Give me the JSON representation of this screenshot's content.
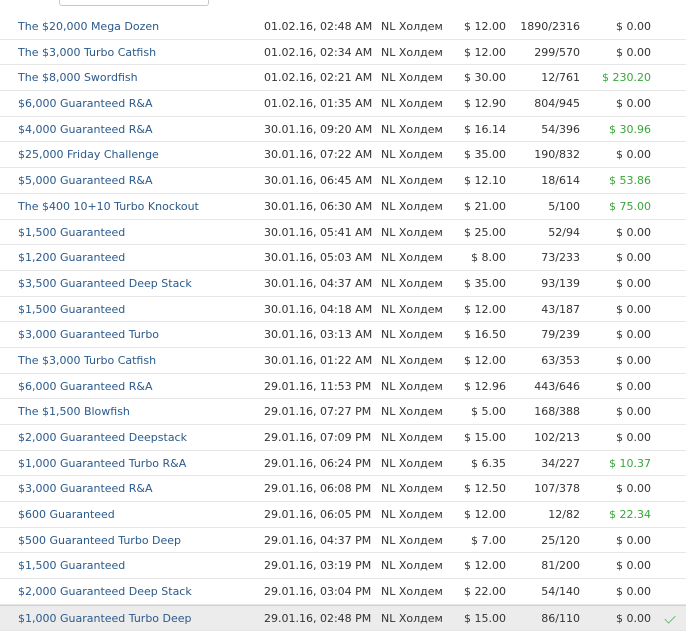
{
  "rows": [
    {
      "name": "The $20,000 Mega Dozen",
      "date": "01.02.16, 02:48 AM",
      "game": "NL Холдем",
      "buyin": "$ 12.00",
      "place": "1890/2316",
      "win": "$ 0.00",
      "won": false
    },
    {
      "name": "The $3,000 Turbo Catfish",
      "date": "01.02.16, 02:34 AM",
      "game": "NL Холдем",
      "buyin": "$ 12.00",
      "place": "299/570",
      "win": "$ 0.00",
      "won": false
    },
    {
      "name": "The $8,000 Swordfish",
      "date": "01.02.16, 02:21 AM",
      "game": "NL Холдем",
      "buyin": "$ 30.00",
      "place": "12/761",
      "win": "$ 230.20",
      "won": true
    },
    {
      "name": "$6,000 Guaranteed R&A",
      "date": "01.02.16, 01:35 AM",
      "game": "NL Холдем",
      "buyin": "$ 12.90",
      "place": "804/945",
      "win": "$ 0.00",
      "won": false
    },
    {
      "name": "$4,000 Guaranteed R&A",
      "date": "30.01.16, 09:20 AM",
      "game": "NL Холдем",
      "buyin": "$ 16.14",
      "place": "54/396",
      "win": "$ 30.96",
      "won": true
    },
    {
      "name": "$25,000 Friday Challenge",
      "date": "30.01.16, 07:22 AM",
      "game": "NL Холдем",
      "buyin": "$ 35.00",
      "place": "190/832",
      "win": "$ 0.00",
      "won": false
    },
    {
      "name": "$5,000 Guaranteed R&A",
      "date": "30.01.16, 06:45 AM",
      "game": "NL Холдем",
      "buyin": "$ 12.10",
      "place": "18/614",
      "win": "$ 53.86",
      "won": true
    },
    {
      "name": "The $400 10+10 Turbo Knockout",
      "date": "30.01.16, 06:30 AM",
      "game": "NL Холдем",
      "buyin": "$ 21.00",
      "place": "5/100",
      "win": "$ 75.00",
      "won": true
    },
    {
      "name": "$1,500 Guaranteed",
      "date": "30.01.16, 05:41 AM",
      "game": "NL Холдем",
      "buyin": "$ 25.00",
      "place": "52/94",
      "win": "$ 0.00",
      "won": false
    },
    {
      "name": "$1,200 Guaranteed",
      "date": "30.01.16, 05:03 AM",
      "game": "NL Холдем",
      "buyin": "$ 8.00",
      "place": "73/233",
      "win": "$ 0.00",
      "won": false
    },
    {
      "name": "$3,500 Guaranteed Deep Stack",
      "date": "30.01.16, 04:37 AM",
      "game": "NL Холдем",
      "buyin": "$ 35.00",
      "place": "93/139",
      "win": "$ 0.00",
      "won": false
    },
    {
      "name": "$1,500 Guaranteed",
      "date": "30.01.16, 04:18 AM",
      "game": "NL Холдем",
      "buyin": "$ 12.00",
      "place": "43/187",
      "win": "$ 0.00",
      "won": false
    },
    {
      "name": "$3,000 Guaranteed Turbo",
      "date": "30.01.16, 03:13 AM",
      "game": "NL Холдем",
      "buyin": "$ 16.50",
      "place": "79/239",
      "win": "$ 0.00",
      "won": false
    },
    {
      "name": "The $3,000 Turbo Catfish",
      "date": "30.01.16, 01:22 AM",
      "game": "NL Холдем",
      "buyin": "$ 12.00",
      "place": "63/353",
      "win": "$ 0.00",
      "won": false
    },
    {
      "name": "$6,000 Guaranteed R&A",
      "date": "29.01.16, 11:53 PM",
      "game": "NL Холдем",
      "buyin": "$ 12.96",
      "place": "443/646",
      "win": "$ 0.00",
      "won": false
    },
    {
      "name": "The $1,500 Blowfish",
      "date": "29.01.16, 07:27 PM",
      "game": "NL Холдем",
      "buyin": "$ 5.00",
      "place": "168/388",
      "win": "$ 0.00",
      "won": false
    },
    {
      "name": "$2,000 Guaranteed Deepstack",
      "date": "29.01.16, 07:09 PM",
      "game": "NL Холдем",
      "buyin": "$ 15.00",
      "place": "102/213",
      "win": "$ 0.00",
      "won": false
    },
    {
      "name": "$1,000 Guaranteed Turbo R&A",
      "date": "29.01.16, 06:24 PM",
      "game": "NL Холдем",
      "buyin": "$ 6.35",
      "place": "34/227",
      "win": "$ 10.37",
      "won": true
    },
    {
      "name": "$3,000 Guaranteed R&A",
      "date": "29.01.16, 06:08 PM",
      "game": "NL Холдем",
      "buyin": "$ 12.50",
      "place": "107/378",
      "win": "$ 0.00",
      "won": false
    },
    {
      "name": "$600 Guaranteed",
      "date": "29.01.16, 06:05 PM",
      "game": "NL Холдем",
      "buyin": "$ 12.00",
      "place": "12/82",
      "win": "$ 22.34",
      "won": true
    },
    {
      "name": "$500 Guaranteed Turbo Deep",
      "date": "29.01.16, 04:37 PM",
      "game": "NL Холдем",
      "buyin": "$ 7.00",
      "place": "25/120",
      "win": "$ 0.00",
      "won": false
    },
    {
      "name": "$1,500 Guaranteed",
      "date": "29.01.16, 03:19 PM",
      "game": "NL Холдем",
      "buyin": "$ 12.00",
      "place": "81/200",
      "win": "$ 0.00",
      "won": false
    },
    {
      "name": "$2,000 Guaranteed Deep Stack",
      "date": "29.01.16, 03:04 PM",
      "game": "NL Холдем",
      "buyin": "$ 22.00",
      "place": "54/140",
      "win": "$ 0.00",
      "won": false
    },
    {
      "name": "$1,000 Guaranteed Turbo Deep",
      "date": "29.01.16, 02:48 PM",
      "game": "NL Холдем",
      "buyin": "$ 15.00",
      "place": "86/110",
      "win": "$ 0.00",
      "won": false,
      "selected": true
    }
  ],
  "colors": {
    "link": "#2a5a8c",
    "win_positive": "#3aa53a",
    "selected_row": "#ececec"
  }
}
